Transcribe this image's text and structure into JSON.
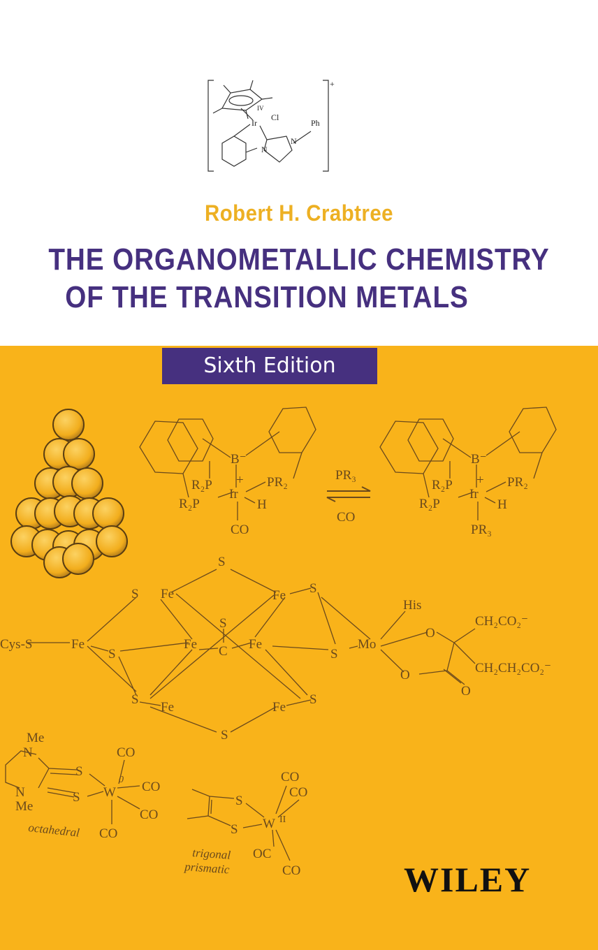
{
  "cover": {
    "author": "Robert H. Crabtree",
    "title_line1": "THE ORGANOMETALLIC CHEMISTRY",
    "title_line2": "OF THE TRANSITION METALS",
    "edition": "Sixth Edition",
    "publisher": "WILEY",
    "colors": {
      "band": "#F9B31A",
      "title": "#46307F",
      "author": "#EDB023",
      "drawing": "#6b4a1c"
    }
  },
  "top_complex": {
    "metal": "Ir",
    "oxidation_state": "IV",
    "chloride": "Cl",
    "phenyl": "Ph",
    "n1": "N",
    "n2": "N",
    "charge": "+"
  },
  "reaction": {
    "left": {
      "boron": "B⁻",
      "metal": "Ir",
      "charge": "+",
      "p_upper": "R₂P",
      "p_lower": "R₂P",
      "p_right": "PR₂",
      "hydride": "H",
      "carbonyl": "CO"
    },
    "arrow_top": "PR₃",
    "arrow_bottom": "CO",
    "right": {
      "boron": "B⁻",
      "metal": "Ir",
      "charge": "+",
      "p_upper": "R₂P",
      "p_lower": "R₂P",
      "p_right": "PR₂",
      "hydride": "H",
      "phosphine": "PR₃"
    }
  },
  "femoco": {
    "s": "S",
    "fe": "Fe",
    "c": "C",
    "mo": "Mo",
    "o": "O",
    "cys": "Cys-S",
    "his": "His",
    "ch2co2": "CH₂CO₂⁻",
    "ch2ch2co2": "CH₂CH₂CO₂⁻"
  },
  "octahedral_complex": {
    "me": "Me",
    "n": "N",
    "s": "S",
    "metal": "W",
    "oxidation_state": "0",
    "co": "CO",
    "label": "octahedral"
  },
  "trigonal_complex": {
    "s": "S",
    "metal": "W",
    "oxidation_state": "II",
    "co": "CO",
    "oc": "OC",
    "label_line1": "trigonal",
    "label_line2": "prismatic"
  }
}
